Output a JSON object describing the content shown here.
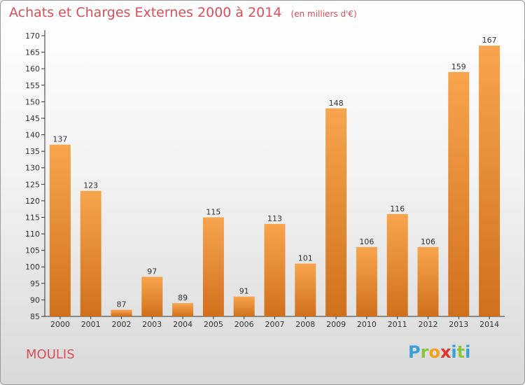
{
  "header": {
    "title": "Achats et Charges Externes 2000 à 2014",
    "unit_note": "(en milliers d'€)"
  },
  "footer": {
    "commune": "MOULIS",
    "brand_letters": [
      "P",
      "r",
      "o",
      "x",
      "i",
      "t",
      "i"
    ],
    "brand_colors": [
      "#3aa0d8",
      "#8cc63f",
      "#f7a11a",
      "#e2342b",
      "#3aa0d8",
      "#8cc63f",
      "#3aa0d8"
    ]
  },
  "colors": {
    "title": "#d94f57",
    "bar_light": "#f8a54e",
    "bar_dark": "#d0701c",
    "axis": "#333333"
  },
  "chart_data": {
    "type": "bar",
    "categories": [
      "2000",
      "2001",
      "2002",
      "2003",
      "2004",
      "2005",
      "2006",
      "2007",
      "2008",
      "2009",
      "2010",
      "2011",
      "2012",
      "2013",
      "2014"
    ],
    "values": [
      137,
      123,
      87,
      97,
      89,
      115,
      91,
      113,
      101,
      148,
      106,
      116,
      106,
      159,
      167
    ],
    "ylim": [
      85,
      170
    ],
    "yticks": [
      85,
      90,
      95,
      100,
      105,
      110,
      115,
      120,
      125,
      130,
      135,
      140,
      145,
      150,
      155,
      160,
      165,
      170
    ],
    "grid": false,
    "legend": "none"
  }
}
